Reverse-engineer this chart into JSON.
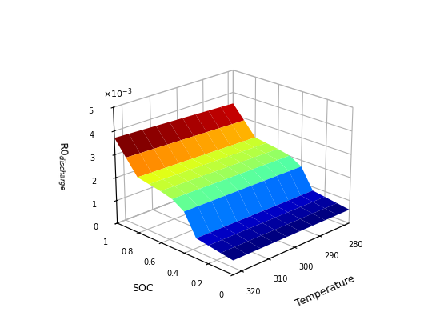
{
  "soc_vals": [
    0.0,
    0.1,
    0.2,
    0.3,
    0.4,
    0.5,
    0.6,
    0.7,
    0.8,
    0.9,
    1.0
  ],
  "temp_vals": [
    278,
    283,
    288,
    293,
    298,
    303,
    308,
    313,
    318,
    323
  ],
  "xlabel": "Temperature",
  "ylabel": "SOC",
  "zlabel": "R0$_{discharge}$",
  "xlim": [
    278,
    323
  ],
  "ylim": [
    0,
    1
  ],
  "zlim": [
    0,
    0.005
  ],
  "xticks": [
    280,
    290,
    300,
    310,
    320
  ],
  "yticks": [
    0,
    0.2,
    0.4,
    0.6,
    0.8,
    1.0
  ],
  "zticks": [
    0,
    0.001,
    0.002,
    0.003,
    0.004,
    0.005
  ],
  "ztick_labels": [
    "0",
    "1",
    "2",
    "3",
    "4",
    "5"
  ],
  "elev": 22,
  "azim": -135,
  "cmap": "jet"
}
